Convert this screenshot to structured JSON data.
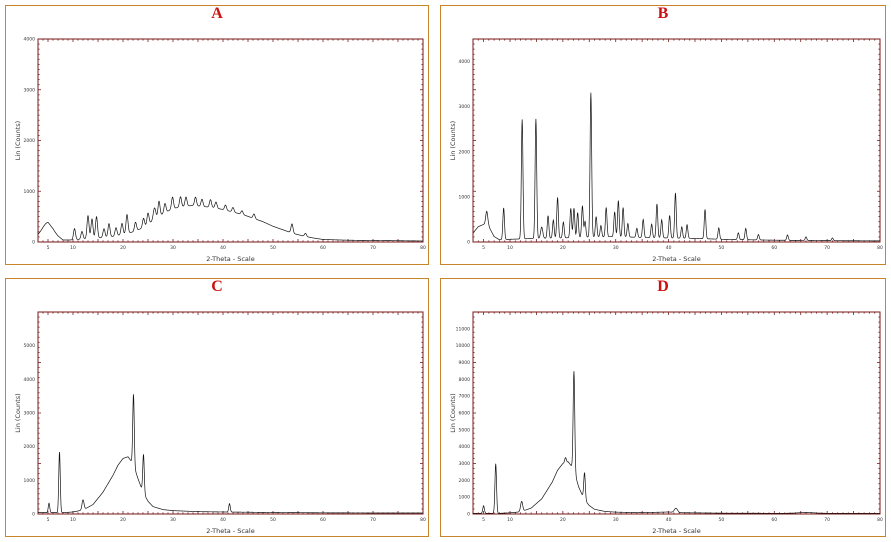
{
  "chart_data": [
    {
      "type": "line",
      "panel_label": "A",
      "xlabel": "2-Theta - Scale",
      "ylabel": "Lin (Counts)",
      "xlim": [
        3,
        80
      ],
      "ylim": [
        0,
        4000
      ],
      "xticks": [
        5,
        10,
        20,
        30,
        40,
        50,
        60,
        70,
        80
      ],
      "yticks": [
        0,
        1000,
        2000,
        3000,
        4000
      ],
      "grid": false,
      "baseline": [
        [
          3,
          150
        ],
        [
          4,
          240
        ],
        [
          5,
          290
        ],
        [
          6,
          240
        ],
        [
          7,
          120
        ],
        [
          8,
          40
        ],
        [
          10,
          40
        ],
        [
          12,
          60
        ],
        [
          15,
          80
        ],
        [
          18,
          110
        ],
        [
          20,
          150
        ],
        [
          22,
          200
        ],
        [
          24,
          280
        ],
        [
          26,
          420
        ],
        [
          28,
          560
        ],
        [
          30,
          660
        ],
        [
          32,
          700
        ],
        [
          34,
          720
        ],
        [
          36,
          700
        ],
        [
          38,
          680
        ],
        [
          40,
          640
        ],
        [
          42,
          590
        ],
        [
          44,
          540
        ],
        [
          46,
          470
        ],
        [
          48,
          400
        ],
        [
          50,
          310
        ],
        [
          52,
          240
        ],
        [
          54,
          170
        ],
        [
          56,
          120
        ],
        [
          58,
          80
        ],
        [
          60,
          50
        ],
        [
          65,
          35
        ],
        [
          70,
          30
        ],
        [
          75,
          25
        ],
        [
          80,
          20
        ]
      ],
      "peaks": [
        [
          4.8,
          100,
          0.7
        ],
        [
          10.3,
          220,
          0.2
        ],
        [
          11.8,
          150,
          0.2
        ],
        [
          13,
          450,
          0.2
        ],
        [
          13.8,
          380,
          0.2
        ],
        [
          14.7,
          420,
          0.2
        ],
        [
          16.2,
          170,
          0.2
        ],
        [
          17.2,
          260,
          0.2
        ],
        [
          18.6,
          160,
          0.2
        ],
        [
          19.8,
          220,
          0.2
        ],
        [
          20.8,
          370,
          0.2
        ],
        [
          22.5,
          170,
          0.2
        ],
        [
          24.1,
          180,
          0.2
        ],
        [
          25,
          220,
          0.2
        ],
        [
          26.3,
          230,
          0.25
        ],
        [
          27.2,
          300,
          0.2
        ],
        [
          28.4,
          180,
          0.2
        ],
        [
          29.9,
          230,
          0.2
        ],
        [
          31.5,
          200,
          0.2
        ],
        [
          32.6,
          180,
          0.2
        ],
        [
          34.5,
          170,
          0.2
        ],
        [
          35.8,
          140,
          0.2
        ],
        [
          37.5,
          150,
          0.2
        ],
        [
          38.6,
          120,
          0.2
        ],
        [
          40.5,
          100,
          0.2
        ],
        [
          42,
          90,
          0.2
        ],
        [
          43.8,
          70,
          0.2
        ],
        [
          46.2,
          90,
          0.2
        ],
        [
          53.8,
          180,
          0.2
        ],
        [
          56.5,
          60,
          0.2
        ]
      ]
    },
    {
      "type": "line",
      "panel_label": "B",
      "xlabel": "2-Theta - Scale",
      "ylabel": "Lin (Counts)",
      "xlim": [
        3,
        80
      ],
      "ylim": [
        0,
        4500
      ],
      "xticks": [
        5,
        10,
        20,
        30,
        40,
        50,
        60,
        70,
        80
      ],
      "yticks": [
        0,
        1000,
        2000,
        3000,
        4000
      ],
      "grid": false,
      "baseline": [
        [
          3,
          200
        ],
        [
          4,
          340
        ],
        [
          5,
          390
        ],
        [
          6,
          340
        ],
        [
          7,
          120
        ],
        [
          8,
          50
        ],
        [
          10,
          60
        ],
        [
          15,
          80
        ],
        [
          20,
          90
        ],
        [
          25,
          110
        ],
        [
          30,
          120
        ],
        [
          35,
          100
        ],
        [
          40,
          90
        ],
        [
          45,
          80
        ],
        [
          50,
          60
        ],
        [
          55,
          50
        ],
        [
          60,
          40
        ],
        [
          70,
          30
        ],
        [
          80,
          25
        ]
      ],
      "peaks": [
        [
          5.6,
          320,
          0.2
        ],
        [
          8.8,
          700,
          0.15
        ],
        [
          12.3,
          2650,
          0.15
        ],
        [
          14.9,
          2650,
          0.15
        ],
        [
          16,
          250,
          0.2
        ],
        [
          17.2,
          500,
          0.15
        ],
        [
          18.2,
          400,
          0.15
        ],
        [
          19,
          900,
          0.15
        ],
        [
          20.1,
          350,
          0.15
        ],
        [
          21.5,
          650,
          0.15
        ],
        [
          22.1,
          650,
          0.15
        ],
        [
          22.8,
          550,
          0.15
        ],
        [
          23.7,
          700,
          0.15
        ],
        [
          24.2,
          350,
          0.15
        ],
        [
          25.3,
          3200,
          0.15
        ],
        [
          26.3,
          450,
          0.15
        ],
        [
          27.2,
          250,
          0.15
        ],
        [
          28.2,
          650,
          0.15
        ],
        [
          29.8,
          550,
          0.15
        ],
        [
          30.5,
          800,
          0.15
        ],
        [
          31.4,
          650,
          0.15
        ],
        [
          32.3,
          300,
          0.15
        ],
        [
          34,
          200,
          0.15
        ],
        [
          35.2,
          400,
          0.15
        ],
        [
          36.8,
          300,
          0.15
        ],
        [
          37.8,
          750,
          0.15
        ],
        [
          38.7,
          400,
          0.15
        ],
        [
          40.2,
          500,
          0.15
        ],
        [
          41.3,
          1000,
          0.15
        ],
        [
          42.5,
          250,
          0.15
        ],
        [
          43.5,
          300,
          0.15
        ],
        [
          46.9,
          650,
          0.15
        ],
        [
          49.5,
          250,
          0.15
        ],
        [
          53.2,
          150,
          0.15
        ],
        [
          54.6,
          250,
          0.15
        ],
        [
          57,
          120,
          0.15
        ],
        [
          62.5,
          120,
          0.15
        ],
        [
          66,
          80,
          0.15
        ],
        [
          71,
          60,
          0.15
        ]
      ]
    },
    {
      "type": "line",
      "panel_label": "C",
      "xlabel": "2-Theta - Scale",
      "ylabel": "Lin (Counts)",
      "xlim": [
        3,
        80
      ],
      "ylim": [
        0,
        6000
      ],
      "xticks": [
        5,
        10,
        20,
        30,
        40,
        50,
        60,
        70,
        80
      ],
      "yticks": [
        0,
        1000,
        2000,
        3000,
        4000,
        5000
      ],
      "grid": false,
      "baseline": [
        [
          3,
          40
        ],
        [
          8,
          40
        ],
        [
          10,
          60
        ],
        [
          12,
          120
        ],
        [
          14,
          280
        ],
        [
          16,
          650
        ],
        [
          18,
          1150
        ],
        [
          19,
          1450
        ],
        [
          20,
          1650
        ],
        [
          21,
          1700
        ],
        [
          22,
          1500
        ],
        [
          23,
          1050
        ],
        [
          24,
          650
        ],
        [
          25,
          380
        ],
        [
          26,
          220
        ],
        [
          28,
          130
        ],
        [
          30,
          100
        ],
        [
          35,
          70
        ],
        [
          40,
          60
        ],
        [
          50,
          45
        ],
        [
          60,
          35
        ],
        [
          70,
          30
        ],
        [
          80,
          30
        ]
      ],
      "peaks": [
        [
          5.2,
          280,
          0.15
        ],
        [
          7.3,
          1800,
          0.15
        ],
        [
          12,
          300,
          0.2
        ],
        [
          22.1,
          2100,
          0.15
        ],
        [
          24.1,
          1150,
          0.15
        ],
        [
          41.3,
          250,
          0.15
        ]
      ]
    },
    {
      "type": "line",
      "panel_label": "D",
      "xlabel": "2-Theta - Scale",
      "ylabel": "Lin (Counts)",
      "xlim": [
        3,
        80
      ],
      "ylim": [
        0,
        12000
      ],
      "xticks": [
        5,
        10,
        20,
        30,
        40,
        50,
        60,
        70,
        80
      ],
      "yticks": [
        0,
        1000,
        2000,
        3000,
        4000,
        5000,
        6000,
        7000,
        8000,
        9000,
        10000,
        11000
      ],
      "grid": false,
      "baseline": [
        [
          3,
          40
        ],
        [
          8,
          40
        ],
        [
          10,
          70
        ],
        [
          12,
          130
        ],
        [
          14,
          350
        ],
        [
          16,
          900
        ],
        [
          18,
          1900
        ],
        [
          19,
          2600
        ],
        [
          20,
          3000
        ],
        [
          21,
          3100
        ],
        [
          22,
          2700
        ],
        [
          23,
          1600
        ],
        [
          24,
          900
        ],
        [
          25,
          500
        ],
        [
          26,
          280
        ],
        [
          28,
          150
        ],
        [
          30,
          110
        ],
        [
          35,
          80
        ],
        [
          40,
          120
        ],
        [
          42,
          80
        ],
        [
          50,
          50
        ],
        [
          60,
          40
        ],
        [
          70,
          40
        ],
        [
          80,
          40
        ]
      ],
      "peaks": [
        [
          5,
          450,
          0.15
        ],
        [
          7.3,
          2950,
          0.15
        ],
        [
          12.2,
          600,
          0.2
        ],
        [
          20.5,
          300,
          0.15
        ],
        [
          22.1,
          5900,
          0.15
        ],
        [
          24.1,
          1600,
          0.15
        ],
        [
          41.4,
          250,
          0.3
        ],
        [
          66,
          50,
          1.5
        ]
      ]
    }
  ]
}
